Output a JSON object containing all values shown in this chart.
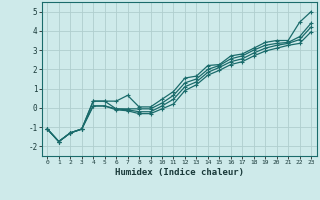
{
  "title": "",
  "xlabel": "Humidex (Indice chaleur)",
  "bg_color": "#ceeaea",
  "grid_color": "#b0cece",
  "line_color": "#1a6b6b",
  "xlim": [
    -0.5,
    23.5
  ],
  "ylim": [
    -2.5,
    5.5
  ],
  "xticks": [
    0,
    1,
    2,
    3,
    4,
    5,
    6,
    7,
    8,
    9,
    10,
    11,
    12,
    13,
    14,
    15,
    16,
    17,
    18,
    19,
    20,
    21,
    22,
    23
  ],
  "yticks": [
    -2,
    -1,
    0,
    1,
    2,
    3,
    4,
    5
  ],
  "x_data": [
    0,
    1,
    2,
    3,
    4,
    5,
    6,
    7,
    8,
    9,
    10,
    11,
    12,
    13,
    14,
    15,
    16,
    17,
    18,
    19,
    20,
    21,
    22,
    23
  ],
  "line1_y": [
    -1.1,
    -1.75,
    -1.3,
    -1.1,
    0.35,
    0.35,
    0.35,
    0.65,
    0.05,
    0.05,
    0.45,
    0.85,
    1.55,
    1.65,
    2.2,
    2.25,
    2.7,
    2.8,
    3.1,
    3.4,
    3.5,
    3.5,
    4.45,
    5.0
  ],
  "line2_y": [
    -1.1,
    -1.75,
    -1.3,
    -1.1,
    0.35,
    0.35,
    -0.05,
    -0.05,
    -0.05,
    -0.05,
    0.25,
    0.65,
    1.3,
    1.5,
    2.0,
    2.2,
    2.55,
    2.7,
    3.0,
    3.25,
    3.35,
    3.4,
    3.7,
    4.4
  ],
  "line3_y": [
    -1.1,
    -1.75,
    -1.3,
    -1.1,
    0.1,
    0.1,
    -0.05,
    -0.1,
    -0.2,
    -0.2,
    0.1,
    0.45,
    1.1,
    1.35,
    1.85,
    2.1,
    2.4,
    2.55,
    2.85,
    3.1,
    3.25,
    3.35,
    3.55,
    4.2
  ],
  "line4_y": [
    -1.1,
    -1.75,
    -1.3,
    -1.1,
    0.1,
    0.1,
    -0.1,
    -0.15,
    -0.3,
    -0.3,
    -0.05,
    0.2,
    0.9,
    1.2,
    1.7,
    1.95,
    2.25,
    2.4,
    2.7,
    2.95,
    3.1,
    3.25,
    3.35,
    3.95
  ]
}
